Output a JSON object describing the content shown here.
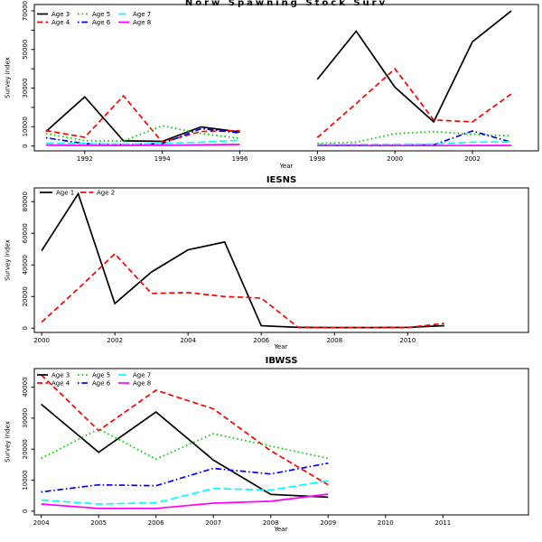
{
  "figure_title": "Norw Spawning Stock Surv",
  "chart_data": [
    {
      "type": "line",
      "title": "Norw Spawning Stock Surv",
      "xlabel": "Year",
      "ylabel": "Survey index",
      "legend_position": "topleft",
      "legend_rows": 2,
      "grid": false,
      "xlim": [
        1990.7,
        2003.7
      ],
      "ylim": [
        -2500,
        73300
      ],
      "xticks": [
        1992,
        1994,
        1996,
        1998,
        2000,
        2002
      ],
      "xtick_labels": [
        "1992",
        "1994",
        "1996",
        "1998",
        "2000",
        "2002"
      ],
      "yticks": [
        0,
        10000,
        20000,
        30000,
        40000,
        50000,
        60000,
        70000
      ],
      "ytick_labels": [
        "0",
        "10000",
        "",
        "30000",
        "",
        "50000",
        "",
        "70000"
      ],
      "x": [
        1991,
        1992,
        1993,
        1994,
        1995,
        1996,
        1997,
        1998,
        1999,
        2000,
        2001,
        2002,
        2003
      ],
      "series": [
        {
          "name": "Age 3",
          "color": "#000000",
          "dash": "solid",
          "values": [
            7500,
            25500,
            2700,
            2400,
            9900,
            7300,
            null,
            34500,
            59500,
            30500,
            12500,
            54000,
            70000
          ]
        },
        {
          "name": "Age 4",
          "color": "#FF0000",
          "dash": "dashed",
          "values": [
            8000,
            4500,
            26000,
            2000,
            7500,
            8000,
            null,
            4400,
            22000,
            40000,
            13500,
            12500,
            27000
          ]
        },
        {
          "name": "Age 5",
          "color": "#00CC00",
          "dash": "dotted",
          "values": [
            6500,
            2800,
            2600,
            10500,
            6500,
            4000,
            null,
            1300,
            2000,
            6400,
            7500,
            6000,
            5200
          ]
        },
        {
          "name": "Age 6",
          "color": "#0000FF",
          "dash": "dashdot",
          "values": [
            4300,
            1200,
            800,
            1200,
            9000,
            6700,
            null,
            400,
            400,
            500,
            600,
            7800,
            2000
          ]
        },
        {
          "name": "Age 7",
          "color": "#00FFFF",
          "dash": "longdash",
          "values": [
            1500,
            1200,
            1000,
            1300,
            2000,
            3000,
            null,
            800,
            800,
            900,
            1000,
            2000,
            2200
          ]
        },
        {
          "name": "Age 8",
          "color": "#FF00FF",
          "dash": "solid",
          "values": [
            500,
            300,
            300,
            400,
            600,
            800,
            null,
            200,
            200,
            200,
            200,
            300,
            300
          ]
        }
      ]
    },
    {
      "type": "line",
      "title": "IESNS",
      "xlabel": "Year",
      "ylabel": "Survey index",
      "legend_position": "topleft",
      "legend_rows": 1,
      "grid": false,
      "xlim": [
        1999.8,
        2013.3
      ],
      "ylim": [
        -2700,
        88700
      ],
      "xticks": [
        2000,
        2002,
        2004,
        2006,
        2008,
        2010
      ],
      "xtick_labels": [
        "2000",
        "2002",
        "2004",
        "2006",
        "2008",
        "2010"
      ],
      "yticks": [
        0,
        20000,
        40000,
        60000,
        80000
      ],
      "ytick_labels": [
        "0",
        "20000",
        "40000",
        "60000",
        "80000"
      ],
      "x": [
        2000,
        2001,
        2002,
        2003,
        2004,
        2005,
        2006,
        2007,
        2008,
        2009,
        2010,
        2011
      ],
      "series": [
        {
          "name": "Age 1",
          "color": "#000000",
          "dash": "solid",
          "values": [
            49000,
            85000,
            15600,
            35500,
            49500,
            54500,
            1500,
            500,
            400,
            400,
            500,
            1600
          ]
        },
        {
          "name": "Age 2",
          "color": "#FF0000",
          "dash": "dashed",
          "values": [
            3800,
            25000,
            47000,
            22000,
            22500,
            20000,
            19000,
            700,
            300,
            300,
            400,
            3000
          ]
        }
      ]
    },
    {
      "type": "line",
      "title": "IBWSS",
      "xlabel": "Year",
      "ylabel": "Survey index",
      "legend_position": "topleft",
      "legend_rows": 2,
      "grid": false,
      "xlim": [
        2003.88,
        2012.49
      ],
      "ylim": [
        -1200,
        46000
      ],
      "xticks": [
        2004,
        2005,
        2006,
        2007,
        2008,
        2009,
        2010,
        2011
      ],
      "xtick_labels": [
        "2004",
        "2005",
        "2006",
        "2007",
        "2008",
        "2009",
        "2010",
        "2011"
      ],
      "yticks": [
        0,
        10000,
        20000,
        30000,
        40000
      ],
      "ytick_labels": [
        "0",
        "10000",
        "20000",
        "30000",
        "40000"
      ],
      "x": [
        2004,
        2005,
        2006,
        2007,
        2008,
        2009
      ],
      "series": [
        {
          "name": "Age 3",
          "color": "#000000",
          "dash": "solid",
          "values": [
            34500,
            19000,
            32000,
            16500,
            5400,
            4500
          ]
        },
        {
          "name": "Age 4",
          "color": "#FF0000",
          "dash": "dashed",
          "values": [
            44000,
            26000,
            39000,
            33000,
            19500,
            8500
          ]
        },
        {
          "name": "Age 5",
          "color": "#00CC00",
          "dash": "dotted",
          "values": [
            17000,
            26500,
            16800,
            25000,
            21000,
            17000
          ]
        },
        {
          "name": "Age 6",
          "color": "#0000FF",
          "dash": "dashdot",
          "values": [
            6200,
            8500,
            8200,
            13800,
            12000,
            15500
          ]
        },
        {
          "name": "Age 7",
          "color": "#00FFFF",
          "dash": "longdash",
          "values": [
            3600,
            2300,
            2700,
            7300,
            6800,
            9800
          ]
        },
        {
          "name": "Age 8",
          "color": "#FF00FF",
          "dash": "solid",
          "values": [
            2300,
            900,
            900,
            2600,
            3200,
            5500
          ]
        }
      ]
    }
  ]
}
